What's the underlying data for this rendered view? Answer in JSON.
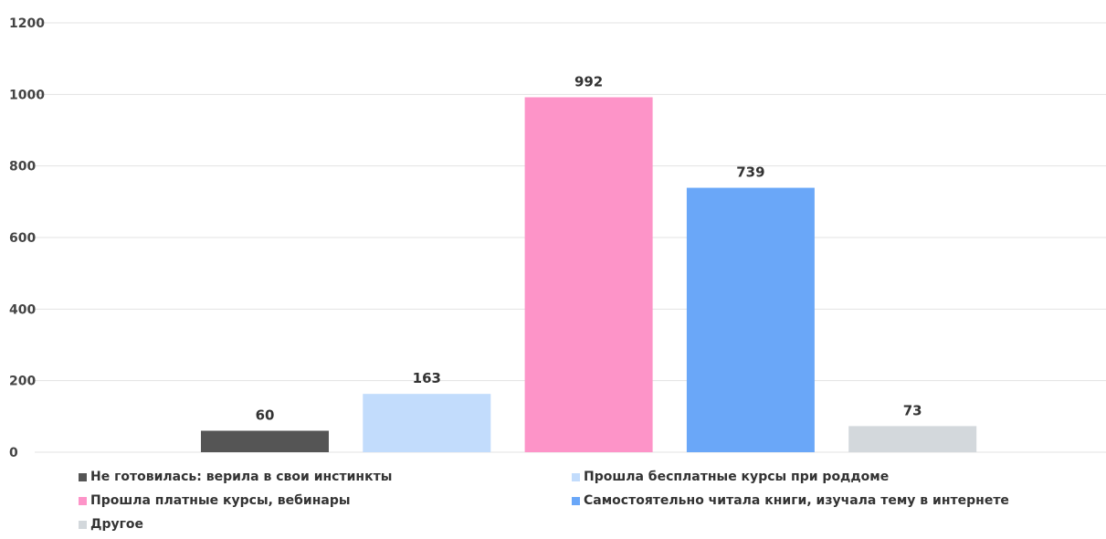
{
  "chart_data": {
    "type": "bar",
    "categories": [
      "Не готовилась: верила в свои инстинкты",
      "Прошла бесплатные курсы при роддоме",
      "Прошла платные курсы, вебинары",
      "Самостоятельно читала книги, изучала тему в интернете",
      "Другое"
    ],
    "values": [
      60,
      163,
      992,
      739,
      73
    ],
    "colors": [
      "#555555",
      "#c2dcfc",
      "#fd94c8",
      "#6aa7f8",
      "#d3d8dc"
    ],
    "ylim": [
      0,
      1200
    ],
    "yticks": [
      0,
      200,
      400,
      600,
      800,
      1000,
      1200
    ],
    "title": "",
    "xlabel": "",
    "ylabel": "",
    "grid": true,
    "legend_position": "bottom"
  }
}
